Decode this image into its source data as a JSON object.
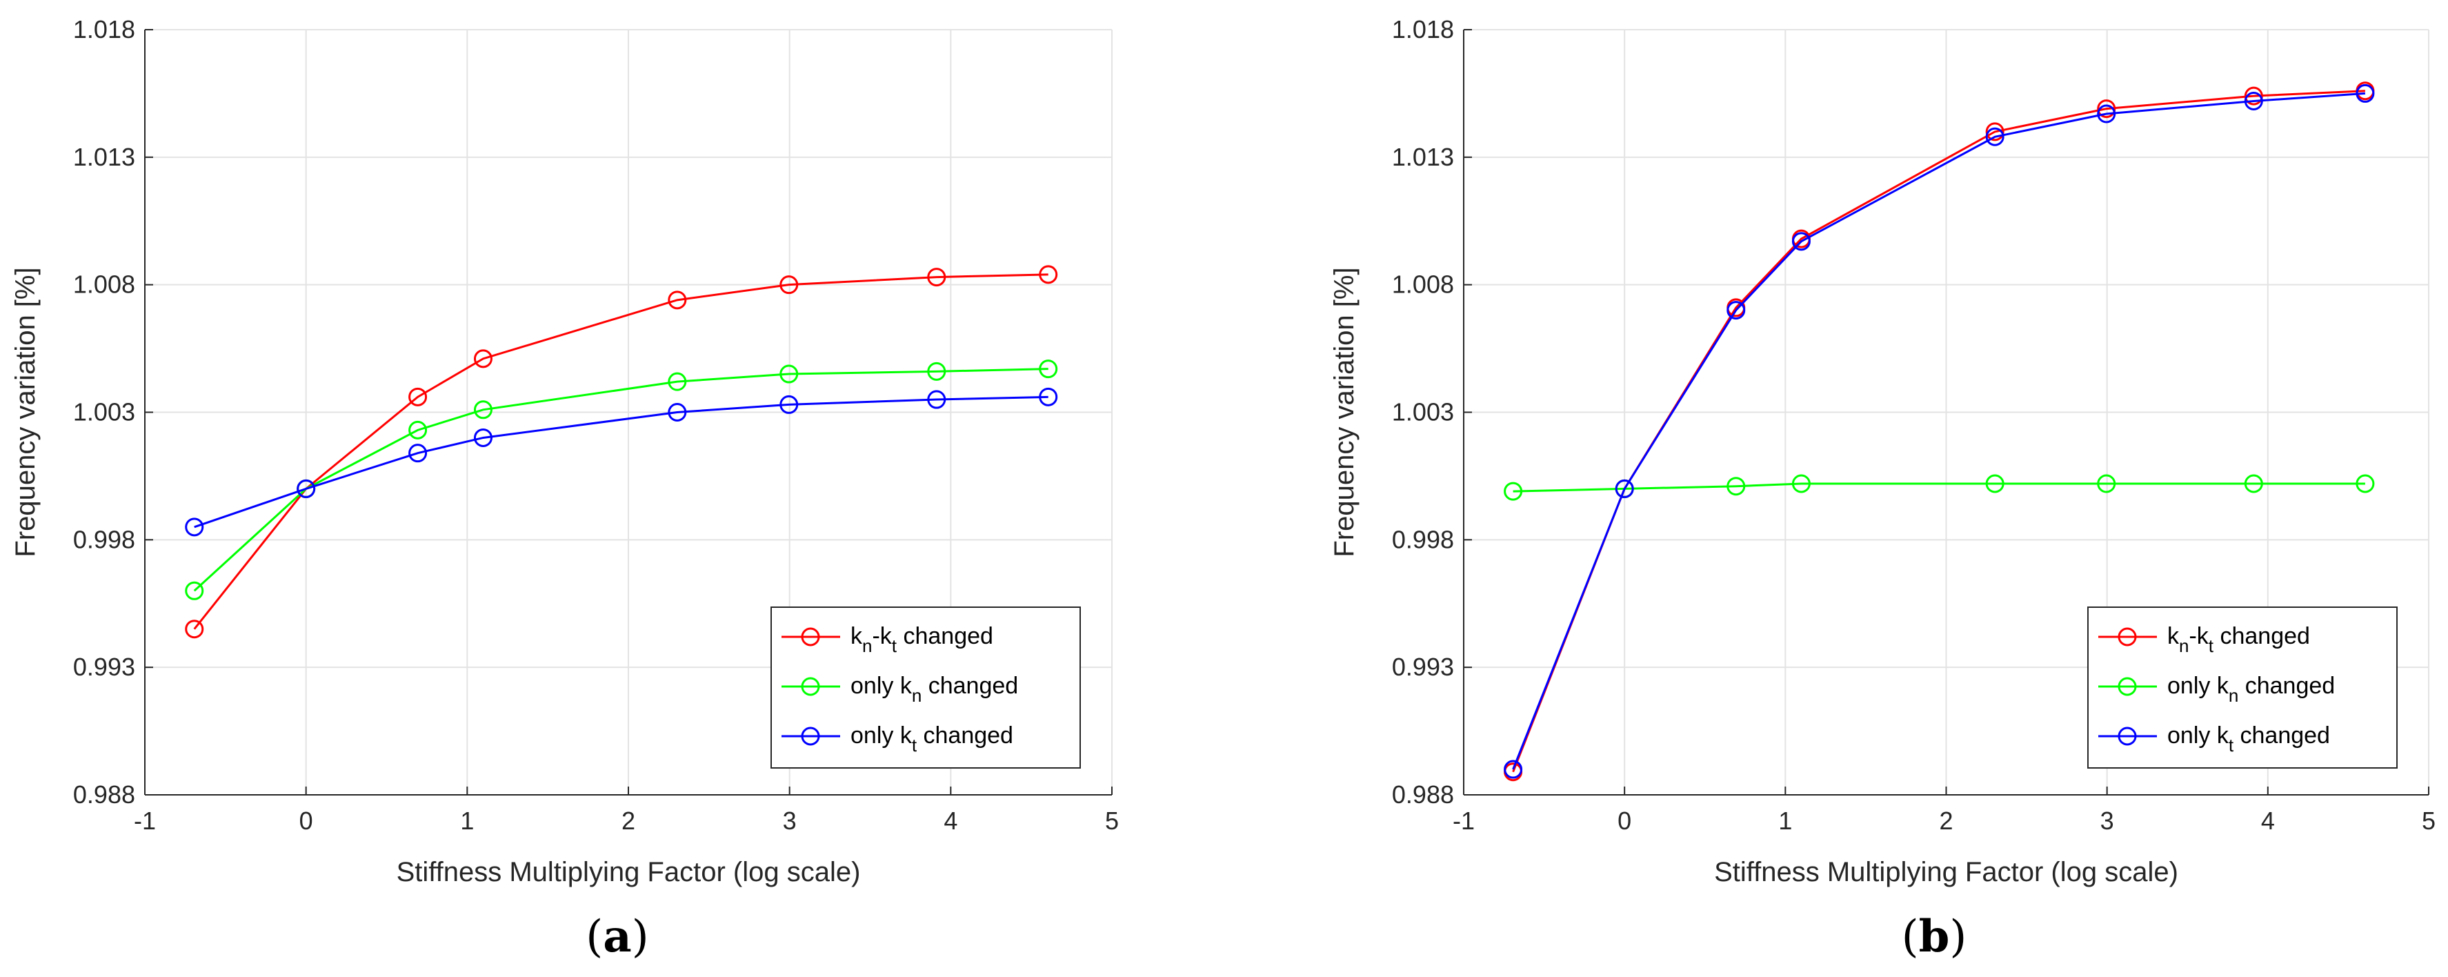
{
  "chart_data": [
    {
      "type": "line",
      "panel": "a",
      "xlabel": "Stiffness Multiplying Factor (log scale)",
      "ylabel": "Frequency variation [%]",
      "xlim": [
        -1,
        5
      ],
      "ylim": [
        0.988,
        1.018
      ],
      "xticks": [
        -1,
        0,
        1,
        2,
        3,
        4,
        5
      ],
      "xtick_labels": [
        "-1",
        "0",
        "1",
        "2",
        "3",
        "4",
        "5"
      ],
      "yticks": [
        0.988,
        0.993,
        0.998,
        1.003,
        1.008,
        1.013,
        1.018
      ],
      "ytick_labels": [
        "0.988",
        "0.993",
        "0.998",
        "1.003",
        "1.008",
        "1.013",
        "1.018"
      ],
      "grid": true,
      "legend_position": "bottom-right",
      "x": [
        -0.693,
        0,
        0.693,
        1.099,
        2.303,
        2.996,
        3.912,
        4.605
      ],
      "series": [
        {
          "name": "kn-kt changed",
          "base": "k",
          "sub1": "n",
          "mid": "-k",
          "sub2": "t",
          "suffix": " changed",
          "color": "#ff0000",
          "values": [
            0.9945,
            1.0,
            1.0036,
            1.0051,
            1.0074,
            1.008,
            1.0083,
            1.0084
          ]
        },
        {
          "name": "only kn changed",
          "base": "only k",
          "sub1": "n",
          "suffix": " changed",
          "color": "#00ff00",
          "values": [
            0.996,
            1.0,
            1.0023,
            1.0031,
            1.0042,
            1.0045,
            1.0046,
            1.0047
          ]
        },
        {
          "name": "only kt changed",
          "base": "only k",
          "sub1": "t",
          "suffix": " changed",
          "color": "#0000ff",
          "values": [
            0.9985,
            1.0,
            1.0014,
            1.002,
            1.003,
            1.0033,
            1.0035,
            1.0036
          ]
        }
      ]
    },
    {
      "type": "line",
      "panel": "b",
      "xlabel": "Stiffness Multiplying Factor (log scale)",
      "ylabel": "Frequency variation [%]",
      "xlim": [
        -1,
        5
      ],
      "ylim": [
        0.988,
        1.018
      ],
      "xticks": [
        -1,
        0,
        1,
        2,
        3,
        4,
        5
      ],
      "xtick_labels": [
        "-1",
        "0",
        "1",
        "2",
        "3",
        "4",
        "5"
      ],
      "yticks": [
        0.988,
        0.993,
        0.998,
        1.003,
        1.008,
        1.013,
        1.018
      ],
      "ytick_labels": [
        "0.988",
        "0.993",
        "0.998",
        "1.003",
        "1.008",
        "1.013",
        "1.018"
      ],
      "grid": true,
      "legend_position": "bottom-right",
      "x": [
        -0.693,
        0,
        0.693,
        1.099,
        2.303,
        2.996,
        3.912,
        4.605
      ],
      "series": [
        {
          "name": "kn-kt changed",
          "base": "k",
          "sub1": "n",
          "mid": "-k",
          "sub2": "t",
          "suffix": " changed",
          "color": "#ff0000",
          "values": [
            0.9889,
            1.0,
            1.0071,
            1.0098,
            1.014,
            1.0149,
            1.0154,
            1.0156
          ]
        },
        {
          "name": "only kn changed",
          "base": "only k",
          "sub1": "n",
          "suffix": " changed",
          "color": "#00ff00",
          "values": [
            0.9999,
            1.0,
            1.0001,
            1.0002,
            1.0002,
            1.0002,
            1.0002,
            1.0002
          ]
        },
        {
          "name": "only kt changed",
          "base": "only k",
          "sub1": "t",
          "suffix": " changed",
          "color": "#0000ff",
          "values": [
            0.989,
            1.0,
            1.007,
            1.0097,
            1.0138,
            1.0147,
            1.0152,
            1.0155
          ]
        }
      ]
    }
  ],
  "panel_labels": [
    {
      "open": "(",
      "letter": "a",
      "close": ")"
    },
    {
      "open": "(",
      "letter": "b",
      "close": ")"
    }
  ]
}
